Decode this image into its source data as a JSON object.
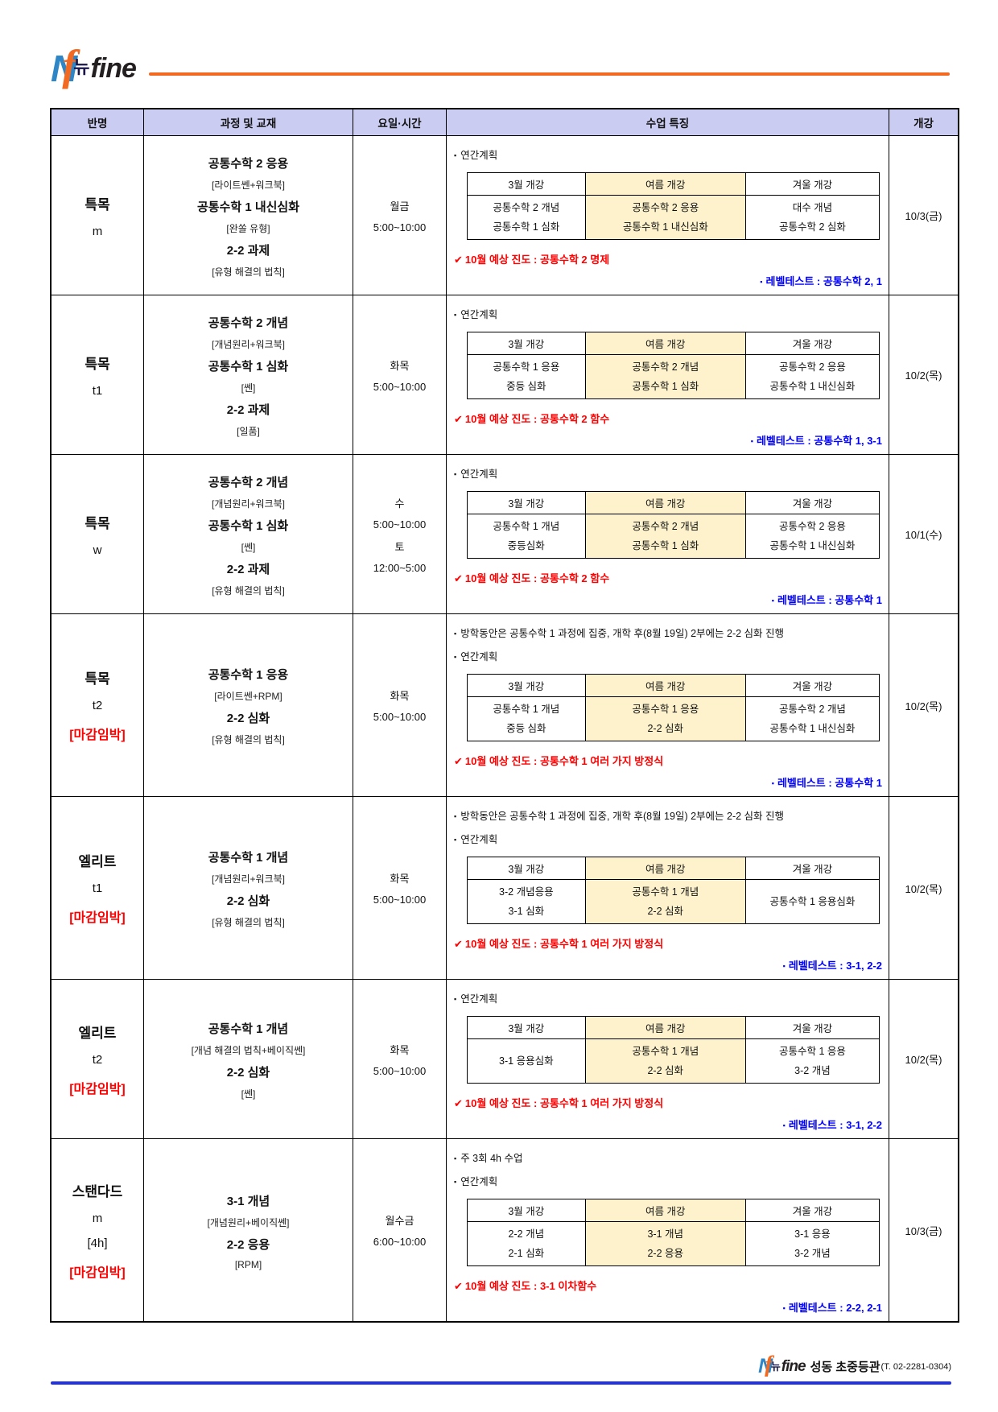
{
  "logo": {
    "n": "N",
    "f": "f",
    "nyu": "뉴",
    "fine": "fine"
  },
  "colors": {
    "accent_orange": "#f26a21",
    "logo_blue": "#2f86c6",
    "header_bg": "#cbccf2",
    "highlight_yellow": "#fdf2cc",
    "progress_red": "#ff0000",
    "level_blue": "#0000ff",
    "footer_line_blue": "#2633cc"
  },
  "table": {
    "columns": [
      "반명",
      "과정 및 교재",
      "요일·시간",
      "수업 특징",
      "개강"
    ],
    "plan_headers": [
      "3월 개강",
      "여름 개강",
      "겨울 개강"
    ],
    "glyphs": {
      "bullet": "▪",
      "check": "✔"
    },
    "rows": [
      {
        "class_name": [
          "특목",
          "m"
        ],
        "badge": "",
        "course_lines": [
          "공통수학 2 응용",
          "[라이트쎈+워크북]",
          "공통수학 1 내신심화",
          "[완쏠 유형]",
          "2-2 과제",
          "[유형 해결의 법칙]"
        ],
        "schedule": [
          "월금",
          "5:00~10:00"
        ],
        "features": {
          "notes": [
            "연간계획"
          ],
          "plan": [
            [
              "공통수학 2 개념",
              "공통수학 1 심화"
            ],
            [
              "공통수학 2 응용",
              "공통수학 1 내신심화"
            ],
            [
              "대수 개념",
              "공통수학 2 심화"
            ]
          ],
          "progress": "10월 예상 진도 : 공통수학 2 명제",
          "level_test": "레벨테스트 : 공통수학 2, 1"
        },
        "start": "10/3(금)"
      },
      {
        "class_name": [
          "특목",
          "t1"
        ],
        "badge": "",
        "course_lines": [
          "공통수학 2 개념",
          "[개념원리+워크북]",
          "공통수학 1 심화",
          "[쎈]",
          "2-2 과제",
          "[일품]"
        ],
        "schedule": [
          "화목",
          "5:00~10:00"
        ],
        "features": {
          "notes": [
            "연간계획"
          ],
          "plan": [
            [
              "공통수학 1 응용",
              "중등 심화"
            ],
            [
              "공통수학 2 개념",
              "공통수학 1 심화"
            ],
            [
              "공통수학 2 응용",
              "공통수학 1 내신심화"
            ]
          ],
          "progress": "10월 예상 진도 : 공통수학 2 함수",
          "level_test": "레벨테스트 : 공통수학 1, 3-1"
        },
        "start": "10/2(목)"
      },
      {
        "class_name": [
          "특목",
          "w"
        ],
        "badge": "",
        "course_lines": [
          "공통수학 2 개념",
          "[개념원리+워크북]",
          "공통수학 1 심화",
          "[쎈]",
          "2-2 과제",
          "[유형 해결의 법칙]"
        ],
        "schedule": [
          "수",
          "5:00~10:00",
          "토",
          "12:00~5:00"
        ],
        "features": {
          "notes": [
            "연간계획"
          ],
          "plan": [
            [
              "공통수학 1 개념",
              "중등심화"
            ],
            [
              "공통수학 2 개념",
              "공통수학 1 심화"
            ],
            [
              "공통수학 2 응용",
              "공통수학 1 내신심화"
            ]
          ],
          "progress": "10월 예상 진도 : 공통수학 2 함수",
          "level_test": "레벨테스트 : 공통수학 1"
        },
        "start": "10/1(수)"
      },
      {
        "class_name": [
          "특목",
          "t2"
        ],
        "badge": "[마감임박]",
        "course_lines": [
          "공통수학 1 응용",
          "[라이트쎈+RPM]",
          "2-2 심화",
          "[유형 해결의 법칙]"
        ],
        "schedule": [
          "화목",
          "5:00~10:00"
        ],
        "features": {
          "notes": [
            "방학동안은 공통수학 1 과정에 집중, 개학 후(8월 19일) 2부에는 2-2 심화 진행",
            "연간계획"
          ],
          "plan": [
            [
              "공통수학 1 개념",
              "중등 심화"
            ],
            [
              "공통수학 1 응용",
              "2-2 심화"
            ],
            [
              "공통수학 2 개념",
              "공통수학 1 내신심화"
            ]
          ],
          "progress": "10월 예상 진도 : 공통수학 1 여러 가지 방정식",
          "level_test": "레벨테스트 : 공통수학 1"
        },
        "start": "10/2(목)"
      },
      {
        "class_name": [
          "엘리트",
          "t1"
        ],
        "badge": "[마감임박]",
        "course_lines": [
          "공통수학 1 개념",
          "[개념원리+워크북]",
          "2-2 심화",
          "[유형 해결의 법칙]"
        ],
        "schedule": [
          "화목",
          "5:00~10:00"
        ],
        "features": {
          "notes": [
            "방학동안은 공통수학 1 과정에 집중, 개학 후(8월 19일) 2부에는 2-2 심화 진행",
            "연간계획"
          ],
          "plan": [
            [
              "3-2 개념응용",
              "3-1 심화"
            ],
            [
              "공통수학 1 개념",
              "2-2 심화"
            ],
            [
              "공통수학 1 응용심화"
            ]
          ],
          "progress": "10월 예상 진도 : 공통수학 1 여러 가지 방정식",
          "level_test": "레벨테스트 : 3-1, 2-2"
        },
        "start": "10/2(목)"
      },
      {
        "class_name": [
          "엘리트",
          "t2"
        ],
        "badge": "[마감임박]",
        "course_lines": [
          "공통수학 1 개념",
          "[개념 해결의 법칙+베이직쎈]",
          "2-2 심화",
          "[쎈]"
        ],
        "schedule": [
          "화목",
          "5:00~10:00"
        ],
        "features": {
          "notes": [
            "연간계획"
          ],
          "plan": [
            [
              "3-1 응용심화"
            ],
            [
              "공통수학 1 개념",
              "2-2 심화"
            ],
            [
              "공통수학 1 응용",
              "3-2 개념"
            ]
          ],
          "progress": "10월 예상 진도 : 공통수학 1 여러 가지 방정식",
          "level_test": "레벨테스트 : 3-1, 2-2"
        },
        "start": "10/2(목)"
      },
      {
        "class_name": [
          "스탠다드",
          "m",
          "[4h]"
        ],
        "badge": "[마감임박]",
        "course_lines": [
          "3-1 개념",
          "[개념원리+베이직쎈]",
          "2-2 응용",
          "[RPM]"
        ],
        "schedule": [
          "월수금",
          "6:00~10:00"
        ],
        "features": {
          "notes": [
            "주 3회 4h 수업",
            "연간계획"
          ],
          "plan": [
            [
              "2-2 개념",
              "2-1 심화"
            ],
            [
              "3-1 개념",
              "2-2 응용"
            ],
            [
              "3-1 응용",
              "3-2 개념"
            ]
          ],
          "progress": "10월 예상 진도 : 3-1 이차함수",
          "level_test": "레벨테스트 : 2-2, 2-1"
        },
        "start": "10/3(금)"
      }
    ]
  },
  "footer": {
    "branch": "성동 초중등관",
    "phone": "(T. 02-2281-0304)"
  }
}
